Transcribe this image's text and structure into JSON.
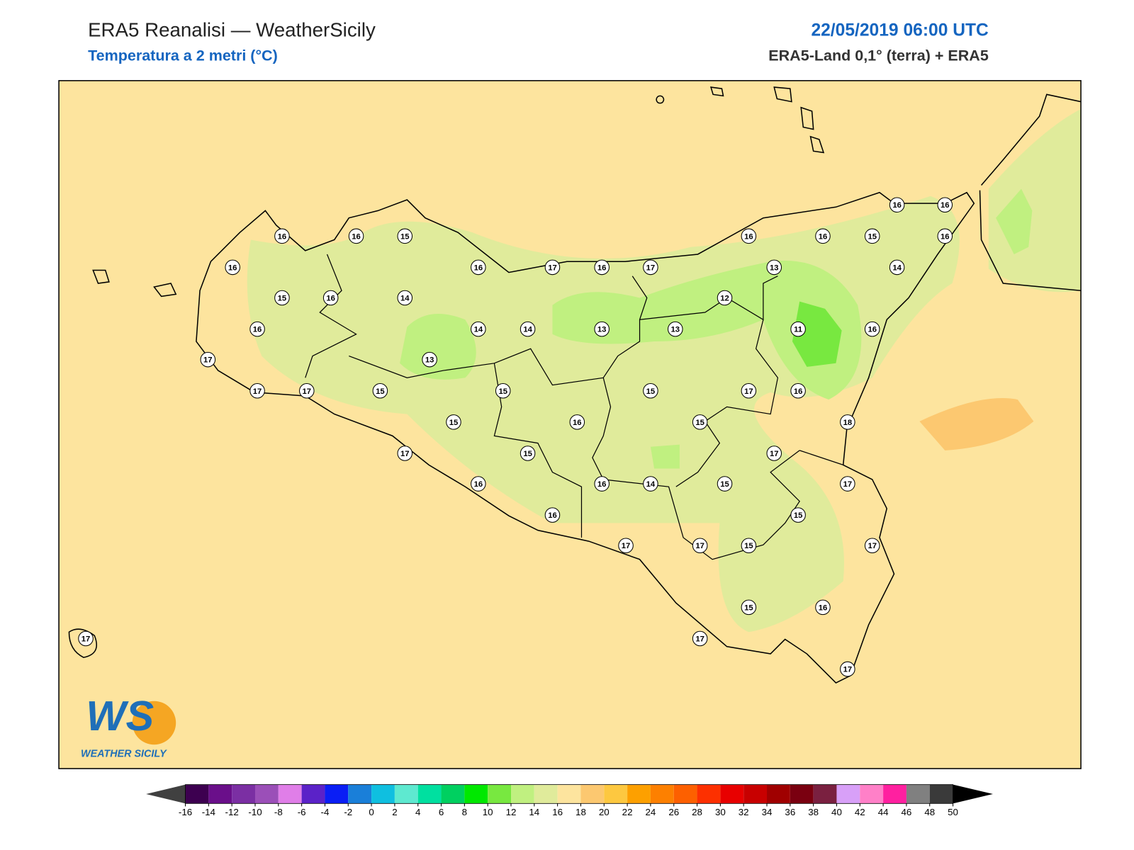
{
  "header": {
    "title": "ERA5 Reanalisi — WeatherSicily",
    "subtitle": "Temperatura a 2 metri (°C)",
    "datetime": "22/05/2019 06:00 UTC",
    "source": "ERA5-Land 0,1° (terra) + ERA5"
  },
  "stations": [
    16,
    16,
    15,
    16,
    15,
    16,
    14,
    16,
    16,
    17,
    16,
    17,
    14,
    14,
    13,
    13,
    13,
    17,
    17,
    17,
    15,
    15,
    15,
    16,
    15,
    16,
    16,
    15,
    16,
    16,
    16,
    13,
    14,
    12,
    11,
    16,
    17,
    16,
    15,
    18,
    17,
    15,
    17,
    16,
    16,
    14,
    15,
    17,
    16,
    15,
    17,
    17,
    15,
    17,
    15,
    16,
    17,
    17,
    17
  ],
  "logo": {
    "mark": "WS",
    "text": "WEATHER SICILY"
  },
  "colorbar": {
    "ticks": [
      -16,
      -14,
      -12,
      -10,
      -8,
      -6,
      -4,
      -2,
      0,
      2,
      4,
      6,
      8,
      10,
      12,
      14,
      16,
      18,
      20,
      22,
      24,
      26,
      28,
      30,
      32,
      34,
      36,
      38,
      40,
      42,
      44,
      46,
      48,
      50
    ],
    "colors": [
      "#3d0050",
      "#6a0f8a",
      "#7b2fa3",
      "#9b4fb8",
      "#e07ee8",
      "#5b22c8",
      "#0a1ef5",
      "#1a7fd9",
      "#0fbfe0",
      "#5ee9d0",
      "#00e0a0",
      "#00d060",
      "#00e800",
      "#78e840",
      "#c0f080",
      "#e0eb9b",
      "#fde49e",
      "#fcc870",
      "#fdc840",
      "#fda000",
      "#fd8000",
      "#fd6000",
      "#fd3000",
      "#e80000",
      "#c80000",
      "#a00000",
      "#7a0010",
      "#7a2040",
      "#d8a0f8",
      "#ff80c8",
      "#ff20a0",
      "#808080",
      "#3a3a3a"
    ],
    "under": "#404040",
    "over": "#000000"
  }
}
